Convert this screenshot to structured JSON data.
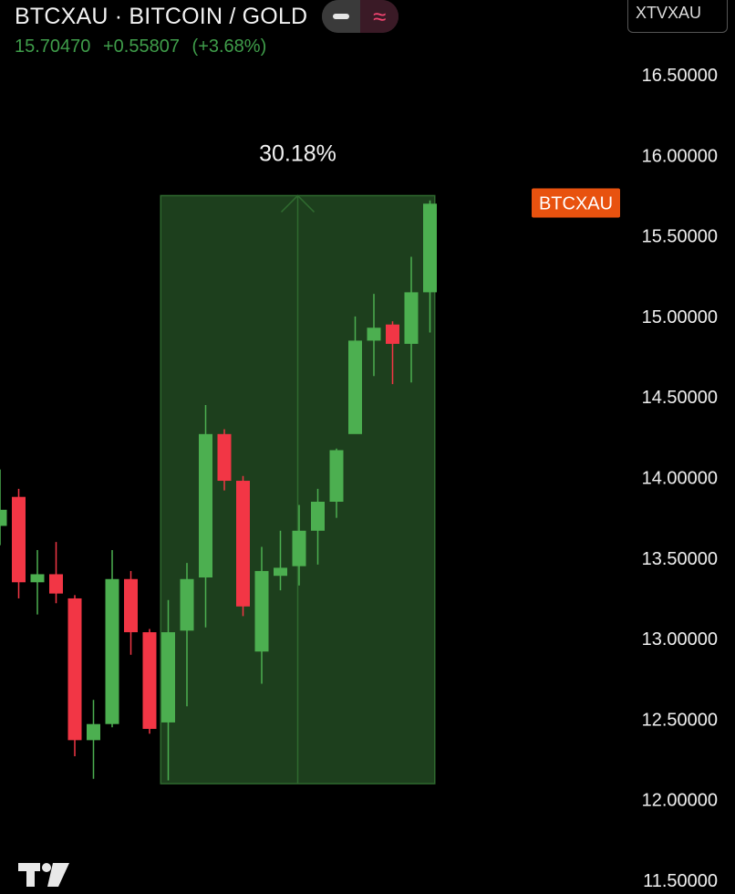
{
  "header": {
    "title": "BTCXAU · BITCOIN / GOLD",
    "last_price": "15.70470",
    "change": "+0.55807",
    "change_pct": "(+3.68%)",
    "compare_symbol": "XTVXAU"
  },
  "colors": {
    "up": "#4caf50",
    "down": "#f23645",
    "range_fill": "#1d3f1d",
    "range_border": "#2f6a2f",
    "price_tag": "#e8520f",
    "background": "#000000"
  },
  "chart_data": {
    "type": "candlestick",
    "symbol": "BTCXAU",
    "y_axis": {
      "ticks": [
        "16.50000",
        "16.00000",
        "15.50000",
        "15.00000",
        "14.50000",
        "14.00000",
        "13.50000",
        "13.00000",
        "12.50000",
        "12.00000",
        "11.50000"
      ],
      "range": [
        11.5,
        16.5
      ]
    },
    "price_tag": {
      "label": "BTCXAU",
      "value": 15.7047
    },
    "candles": [
      {
        "o": 13.7,
        "h": 14.05,
        "l": 13.58,
        "c": 13.8
      },
      {
        "o": 13.88,
        "h": 13.93,
        "l": 13.25,
        "c": 13.35
      },
      {
        "o": 13.35,
        "h": 13.55,
        "l": 13.15,
        "c": 13.4
      },
      {
        "o": 13.4,
        "h": 13.6,
        "l": 13.22,
        "c": 13.28
      },
      {
        "o": 13.25,
        "h": 13.27,
        "l": 12.27,
        "c": 12.37
      },
      {
        "o": 12.37,
        "h": 12.62,
        "l": 12.13,
        "c": 12.47
      },
      {
        "o": 12.47,
        "h": 13.55,
        "l": 12.45,
        "c": 13.37
      },
      {
        "o": 13.37,
        "h": 13.42,
        "l": 12.9,
        "c": 13.04
      },
      {
        "o": 13.04,
        "h": 13.06,
        "l": 12.41,
        "c": 12.44
      },
      {
        "o": 12.48,
        "h": 13.24,
        "l": 12.12,
        "c": 13.04
      },
      {
        "o": 13.05,
        "h": 13.47,
        "l": 12.58,
        "c": 13.37
      },
      {
        "o": 13.38,
        "h": 14.45,
        "l": 13.07,
        "c": 14.27
      },
      {
        "o": 14.27,
        "h": 14.3,
        "l": 13.92,
        "c": 13.98
      },
      {
        "o": 13.98,
        "h": 14.01,
        "l": 13.14,
        "c": 13.2
      },
      {
        "o": 12.92,
        "h": 13.57,
        "l": 12.72,
        "c": 13.42
      },
      {
        "o": 13.39,
        "h": 13.67,
        "l": 13.3,
        "c": 13.44
      },
      {
        "o": 13.45,
        "h": 13.83,
        "l": 13.33,
        "c": 13.67
      },
      {
        "o": 13.67,
        "h": 13.93,
        "l": 13.46,
        "c": 13.85
      },
      {
        "o": 13.85,
        "h": 14.18,
        "l": 13.75,
        "c": 14.17
      },
      {
        "o": 14.27,
        "h": 15.0,
        "l": 14.29,
        "c": 14.85
      },
      {
        "o": 14.85,
        "h": 15.14,
        "l": 14.63,
        "c": 14.93
      },
      {
        "o": 14.95,
        "h": 14.97,
        "l": 14.58,
        "c": 14.83
      },
      {
        "o": 14.83,
        "h": 15.37,
        "l": 14.59,
        "c": 15.15
      },
      {
        "o": 15.15,
        "h": 15.72,
        "l": 14.9,
        "c": 15.7
      }
    ],
    "range_measure": {
      "label": "30.18%",
      "price_from": 12.1,
      "price_to": 15.75,
      "candle_from": 9,
      "candle_to": 23
    }
  }
}
